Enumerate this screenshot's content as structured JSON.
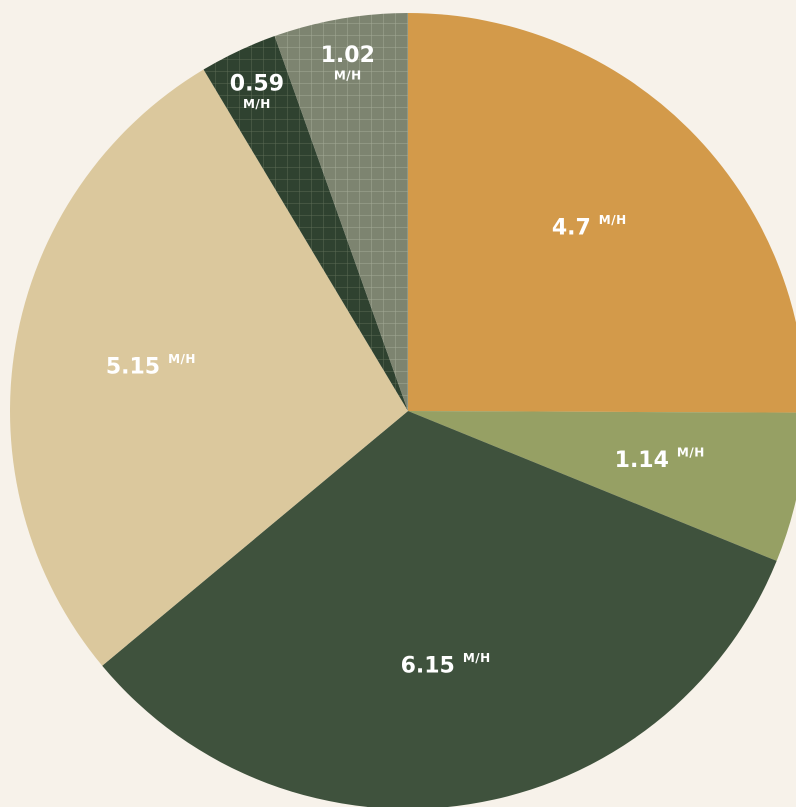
{
  "chart_data": {
    "type": "pie",
    "categories": [
      null,
      null,
      null,
      null,
      null,
      null
    ],
    "values": [
      4.7,
      1.14,
      6.15,
      5.15,
      0.59,
      1.02
    ],
    "unit": "M/H",
    "colors": [
      "#d39a4a",
      "#96a064",
      "#3f523d",
      "#dbc89d",
      "#2f4230",
      "#7d8470"
    ],
    "patterned": [
      false,
      false,
      false,
      false,
      true,
      true
    ],
    "start_angle": 0,
    "direction": "clockwise"
  }
}
